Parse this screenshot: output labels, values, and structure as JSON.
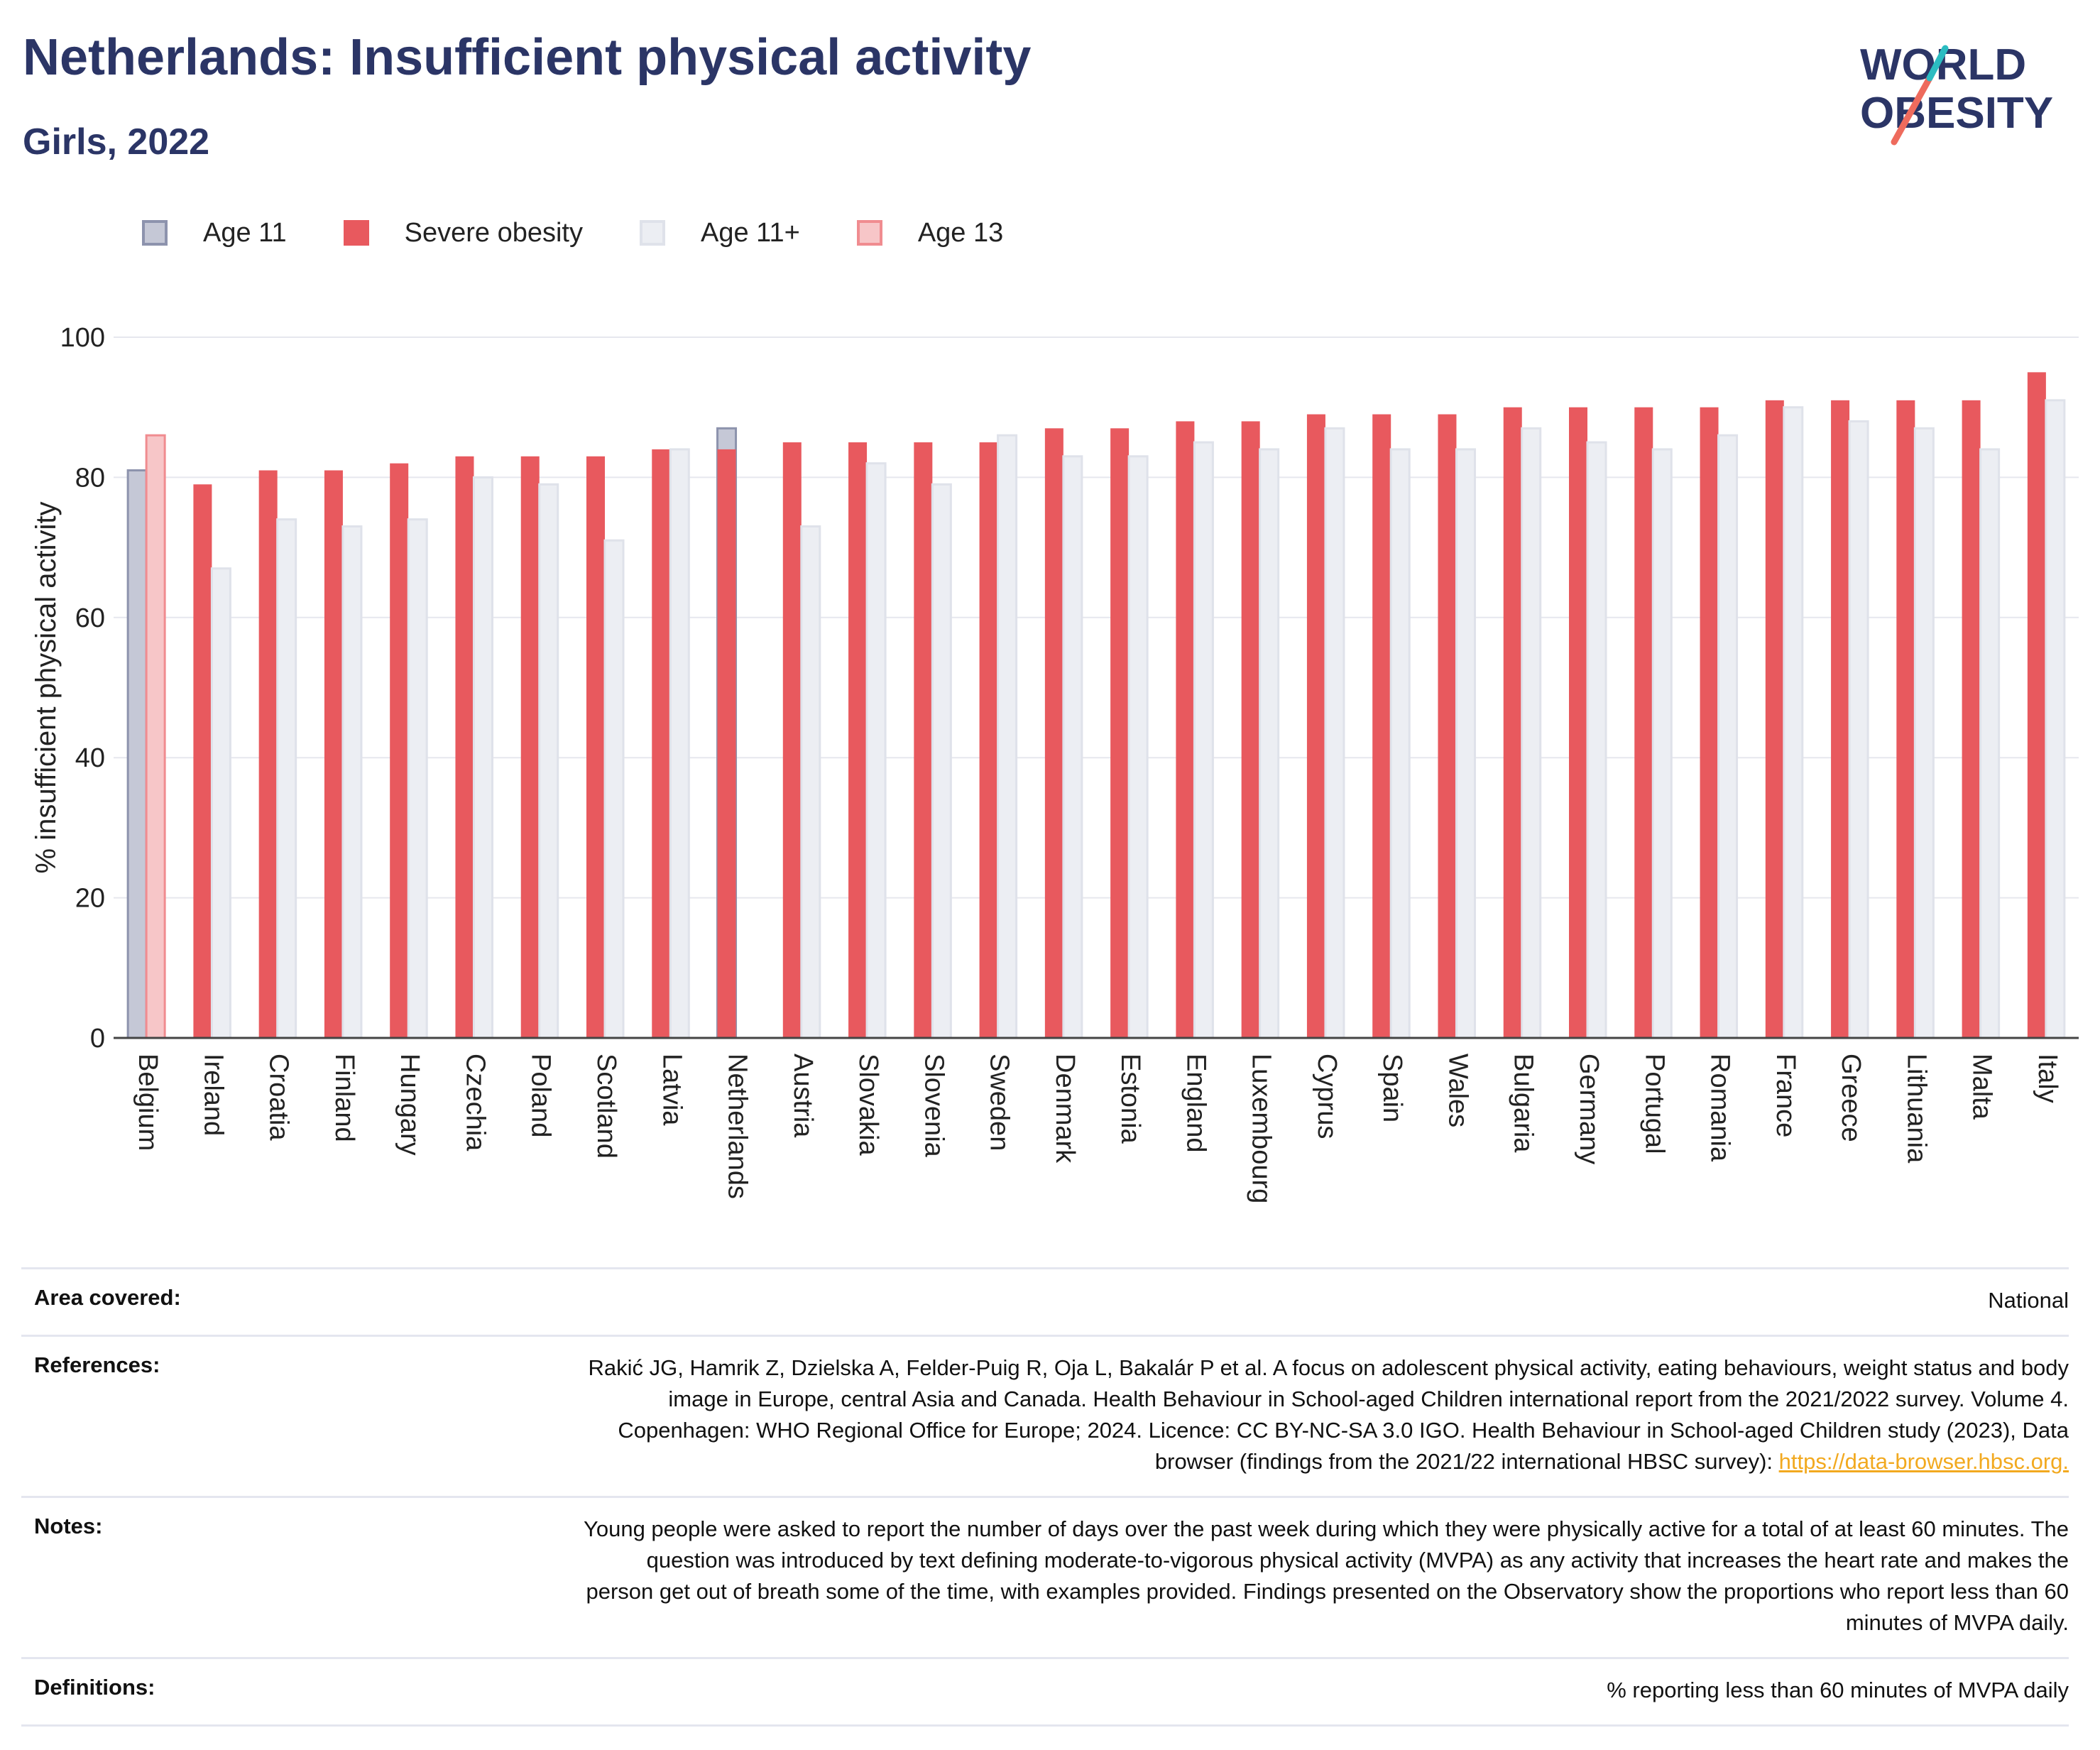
{
  "header": {
    "title": "Netherlands: Insufficient physical activity",
    "subtitle": "Girls, 2022"
  },
  "logo": {
    "line1": "WORLD",
    "line2": "OBESITY"
  },
  "legend": [
    {
      "label": "Age 11",
      "color": "#c5c8d6",
      "border": "#8d93ad"
    },
    {
      "label": "Severe obesity",
      "color": "#e8595e",
      "border": "#e8595e"
    },
    {
      "label": "Age 11+",
      "color": "#eceef3",
      "border": "#dfe2ea"
    },
    {
      "label": "Age 13",
      "color": "#f7c6c8",
      "border": "#f08c90"
    }
  ],
  "chart_data": {
    "type": "bar",
    "ylabel": "% insufficient physical activity",
    "ylim": [
      0,
      100
    ],
    "yticks": [
      0,
      20,
      40,
      60,
      80,
      100
    ],
    "grid": true,
    "legend_position": "top-left",
    "categories": [
      "Belgium",
      "Ireland",
      "Croatia",
      "Finland",
      "Hungary",
      "Czechia",
      "Poland",
      "Scotland",
      "Latvia",
      "Netherlands",
      "Austria",
      "Slovakia",
      "Slovenia",
      "Sweden",
      "Denmark",
      "Estonia",
      "England",
      "Luxembourg",
      "Cyprus",
      "Spain",
      "Wales",
      "Bulgaria",
      "Germany",
      "Portugal",
      "Romania",
      "France",
      "Greece",
      "Lithuania",
      "Malta",
      "Italy"
    ],
    "series": [
      {
        "name": "Age 11",
        "color": "#c5c8d6",
        "values": [
          81,
          null,
          null,
          null,
          null,
          null,
          null,
          null,
          null,
          87,
          null,
          null,
          null,
          null,
          null,
          null,
          null,
          null,
          null,
          null,
          null,
          null,
          null,
          null,
          null,
          null,
          null,
          null,
          null,
          null
        ]
      },
      {
        "name": "Age 13",
        "color": "#f7c6c8",
        "values": [
          86,
          null,
          null,
          null,
          null,
          null,
          null,
          null,
          null,
          null,
          null,
          null,
          null,
          null,
          null,
          null,
          null,
          null,
          null,
          null,
          null,
          null,
          null,
          null,
          null,
          null,
          null,
          null,
          null,
          null
        ]
      },
      {
        "name": "Severe obesity",
        "color": "#e8595e",
        "values": [
          null,
          79,
          81,
          81,
          82,
          83,
          83,
          83,
          84,
          84,
          85,
          85,
          85,
          85,
          87,
          87,
          88,
          88,
          89,
          89,
          89,
          90,
          90,
          90,
          90,
          91,
          91,
          91,
          91,
          95
        ]
      },
      {
        "name": "Age 11+",
        "color": "#eceef3",
        "values": [
          null,
          67,
          74,
          73,
          74,
          80,
          79,
          71,
          84,
          null,
          73,
          82,
          79,
          86,
          83,
          83,
          85,
          84,
          87,
          84,
          84,
          87,
          85,
          84,
          86,
          90,
          88,
          87,
          84,
          91
        ]
      }
    ]
  },
  "meta": {
    "area_key": "Area covered:",
    "area_val": "National",
    "refs_key": "References:",
    "refs_val": "Rakić JG, Hamrik Z, Dzielska A, Felder-Puig R, Oja L, Bakalár P et al. A focus on adolescent physical activity, eating behaviours, weight status and body image in Europe, central Asia and Canada. Health Behaviour in School-aged Children international report from the 2021/2022 survey. Volume 4. Copenhagen: WHO Regional Office for Europe; 2024. Licence: CC BY-NC-SA 3.0 IGO. Health Behaviour in School-aged Children study (2023), Data browser (findings from the 2021/22 international HBSC survey): ",
    "refs_link": "https://data-browser.hbsc.org.",
    "notes_key": "Notes:",
    "notes_val": "Young people were asked to report the number of days over the past week during which they were physically active for a total of at least 60 minutes. The question was introduced by text defining moderate-to-vigorous physical activity (MVPA) as any activity that increases the heart rate and makes the person get out of breath some of the time, with examples provided. Findings presented on the Observatory show the proportions who report less than 60 minutes of MVPA daily.",
    "defs_key": "Definitions:",
    "defs_val": "% reporting less than 60 minutes of MVPA daily"
  }
}
